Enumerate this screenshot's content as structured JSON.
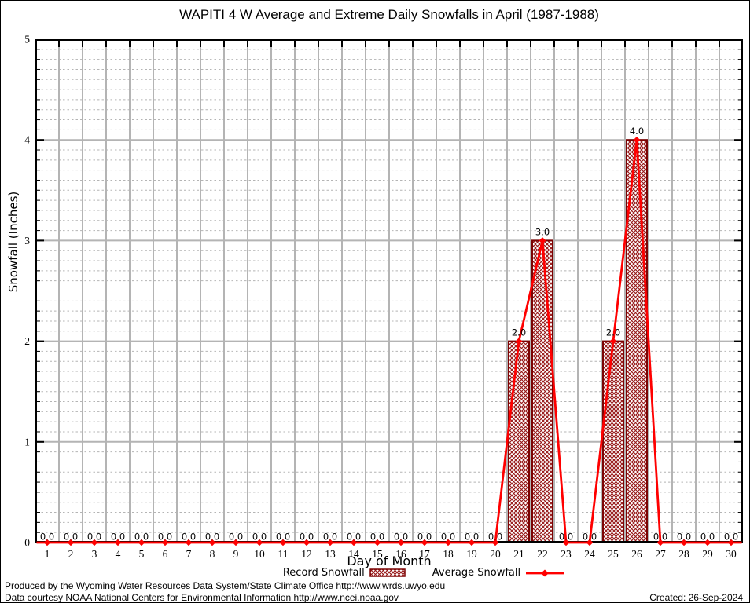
{
  "title": "WAPITI 4 W Average and Extreme Daily Snowfalls in April (1987-1988)",
  "chart_data": {
    "type": "bar",
    "title": "WAPITI 4 W Average and Extreme Daily Snowfalls in April (1987-1988)",
    "xlabel": "Day of Month",
    "ylabel": "Snowfall (Inches)",
    "ylim": [
      0,
      5
    ],
    "yticks": [
      0,
      1,
      2,
      3,
      4,
      5
    ],
    "y_minor_step": 0.1,
    "grid": "on",
    "legend_position": "bottom",
    "x": [
      1,
      2,
      3,
      4,
      5,
      6,
      7,
      8,
      9,
      10,
      11,
      12,
      13,
      14,
      15,
      16,
      17,
      18,
      19,
      20,
      21,
      22,
      23,
      24,
      25,
      26,
      27,
      28,
      29,
      30
    ],
    "series": [
      {
        "name": "Record Snowfall",
        "type": "bar",
        "values": [
          0,
          0,
          0,
          0,
          0,
          0,
          0,
          0,
          0,
          0,
          0,
          0,
          0,
          0,
          0,
          0,
          0,
          0,
          0,
          0,
          2.0,
          3.0,
          0,
          0,
          2.0,
          4.0,
          0,
          0,
          0,
          0
        ]
      },
      {
        "name": "Average Snowfall",
        "type": "line",
        "values": [
          0,
          0,
          0,
          0,
          0,
          0,
          0,
          0,
          0,
          0,
          0,
          0,
          0,
          0,
          0,
          0,
          0,
          0,
          0,
          0,
          2.0,
          3.0,
          0,
          0,
          2.0,
          4.0,
          0,
          0,
          0,
          0
        ]
      }
    ],
    "point_labels": [
      "0.0",
      "0.0",
      "0.0",
      "0.0",
      "0.0",
      "0.0",
      "0.0",
      "0.0",
      "0.0",
      "0.0",
      "0.0",
      "0.0",
      "0.0",
      "0.0",
      "0.0",
      "0.0",
      "0.0",
      "0.0",
      "0.0",
      "0.0",
      "2.0",
      "3.0",
      "0.0",
      "0.0",
      "2.0",
      "4.0",
      "0.0",
      "0.0",
      "0.0",
      "0.0"
    ]
  },
  "legend": {
    "record_label": "Record Snowfall",
    "average_label": "Average Snowfall"
  },
  "footer": {
    "line1": "Produced by the Wyoming Water Resources Data System/State Climate Office http://www.wrds.uwyo.edu",
    "line2": "Data courtesy NOAA National Centers for Environmental Information http://www.ncei.noaa.gov",
    "created": "Created: 26-Sep-2024"
  },
  "colors": {
    "bar_hatch": "#961717",
    "bar_border": "#7b0303",
    "line": "#ff0000",
    "grid": "#b4b4b4",
    "axis": "#000000",
    "text": "#000000"
  }
}
